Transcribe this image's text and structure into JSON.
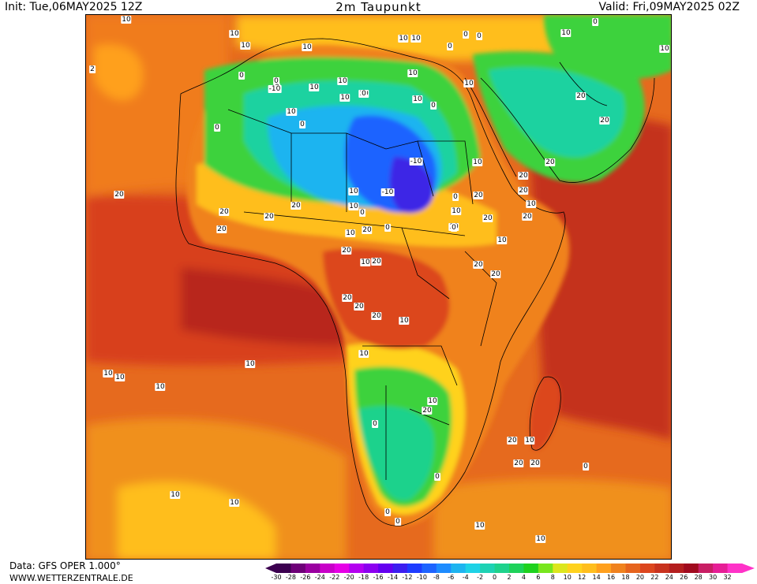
{
  "header": {
    "init": "Init: Tue,06MAY2025 12Z",
    "title": "2m Taupunkt",
    "valid": "Valid: Fri,09MAY2025 02Z"
  },
  "footer": {
    "data_source": "Data: GFS OPER 1.000°",
    "website": "WWW.WETTERZENTRALE.DE"
  },
  "colors": {
    "ocean_warm": "#d8431f",
    "ocean_hot": "#b52a1a",
    "ocean_mild": "#f0801a",
    "desert_dry": "#2060ff",
    "sahel": "#ffd21a",
    "green": "#3cd23c",
    "teal": "#1ad2a0",
    "cyan": "#1ab4f0",
    "mid_orange": "#e86a1a"
  },
  "colorbar": {
    "labels": [
      "-30",
      "-28",
      "-26",
      "-24",
      "-22",
      "-20",
      "-18",
      "-16",
      "-14",
      "-12",
      "-10",
      "-8",
      "-6",
      "-4",
      "-2",
      "0",
      "2",
      "4",
      "6",
      "8",
      "10",
      "12",
      "14",
      "16",
      "18",
      "20",
      "22",
      "24",
      "26",
      "28",
      "30",
      "32"
    ],
    "colors": [
      "#3c0050",
      "#6e0078",
      "#9a00a0",
      "#c800c8",
      "#e600e6",
      "#b400f0",
      "#8c00f0",
      "#6400f0",
      "#3c1ef0",
      "#1e3cff",
      "#1e64ff",
      "#1e8cff",
      "#1eb4f0",
      "#1ed2e6",
      "#1ed2b4",
      "#1ed28c",
      "#1ed25a",
      "#1ed21e",
      "#78e61e",
      "#dce61e",
      "#ffd21e",
      "#ffbe1e",
      "#ffa01e",
      "#f0821e",
      "#e6641e",
      "#dc461e",
      "#c8321e",
      "#b41e1e",
      "#a00a1e",
      "#c81e64",
      "#e61e96",
      "#ff32c8"
    ]
  },
  "contour_labels": [
    {
      "t": "10"
    },
    {
      "t": "10"
    },
    {
      "t": "10"
    },
    {
      "t": "0"
    },
    {
      "t": "0"
    },
    {
      "t": "0"
    },
    {
      "t": "10"
    },
    {
      "t": "10"
    },
    {
      "t": "10"
    },
    {
      "t": "0"
    },
    {
      "t": "10"
    },
    {
      "t": "10"
    },
    {
      "t": "10"
    },
    {
      "t": "2"
    },
    {
      "t": "10"
    },
    {
      "t": "0"
    },
    {
      "t": "-10"
    },
    {
      "t": "10"
    },
    {
      "t": "10"
    },
    {
      "t": "0"
    },
    {
      "t": "0"
    },
    {
      "t": "10"
    },
    {
      "t": "0"
    },
    {
      "t": "10"
    },
    {
      "t": "10"
    },
    {
      "t": "0"
    },
    {
      "t": "0"
    },
    {
      "t": "10"
    },
    {
      "t": "-10"
    },
    {
      "t": "-10"
    },
    {
      "t": "10"
    },
    {
      "t": "0"
    },
    {
      "t": "10"
    },
    {
      "t": "20"
    },
    {
      "t": "0"
    },
    {
      "t": "10"
    },
    {
      "t": "20"
    },
    {
      "t": "20"
    },
    {
      "t": "20"
    },
    {
      "t": "20"
    },
    {
      "t": "10"
    },
    {
      "t": "20"
    },
    {
      "t": "20"
    },
    {
      "t": "20"
    },
    {
      "t": "20"
    },
    {
      "t": "20"
    },
    {
      "t": "20"
    },
    {
      "t": "20"
    },
    {
      "t": "20"
    },
    {
      "t": "20"
    },
    {
      "t": "10"
    },
    {
      "t": "10"
    },
    {
      "t": "10"
    },
    {
      "t": "0"
    },
    {
      "t": "0"
    },
    {
      "t": "0"
    },
    {
      "t": "10"
    },
    {
      "t": "10"
    },
    {
      "t": "20"
    },
    {
      "t": "10"
    },
    {
      "t": "20"
    },
    {
      "t": "20"
    },
    {
      "t": "20"
    },
    {
      "t": "20"
    },
    {
      "t": "20"
    },
    {
      "t": "20"
    },
    {
      "t": "10"
    },
    {
      "t": "10"
    },
    {
      "t": "10"
    },
    {
      "t": "10"
    },
    {
      "t": "10"
    },
    {
      "t": "10"
    },
    {
      "t": "10"
    },
    {
      "t": "20"
    },
    {
      "t": "0"
    },
    {
      "t": "0"
    },
    {
      "t": "0"
    },
    {
      "t": "0"
    },
    {
      "t": "10"
    },
    {
      "t": "10"
    },
    {
      "t": "20"
    },
    {
      "t": "20"
    },
    {
      "t": "10"
    },
    {
      "t": "20"
    },
    {
      "t": "0"
    },
    {
      "t": "10"
    },
    {
      "t": "10"
    }
  ]
}
